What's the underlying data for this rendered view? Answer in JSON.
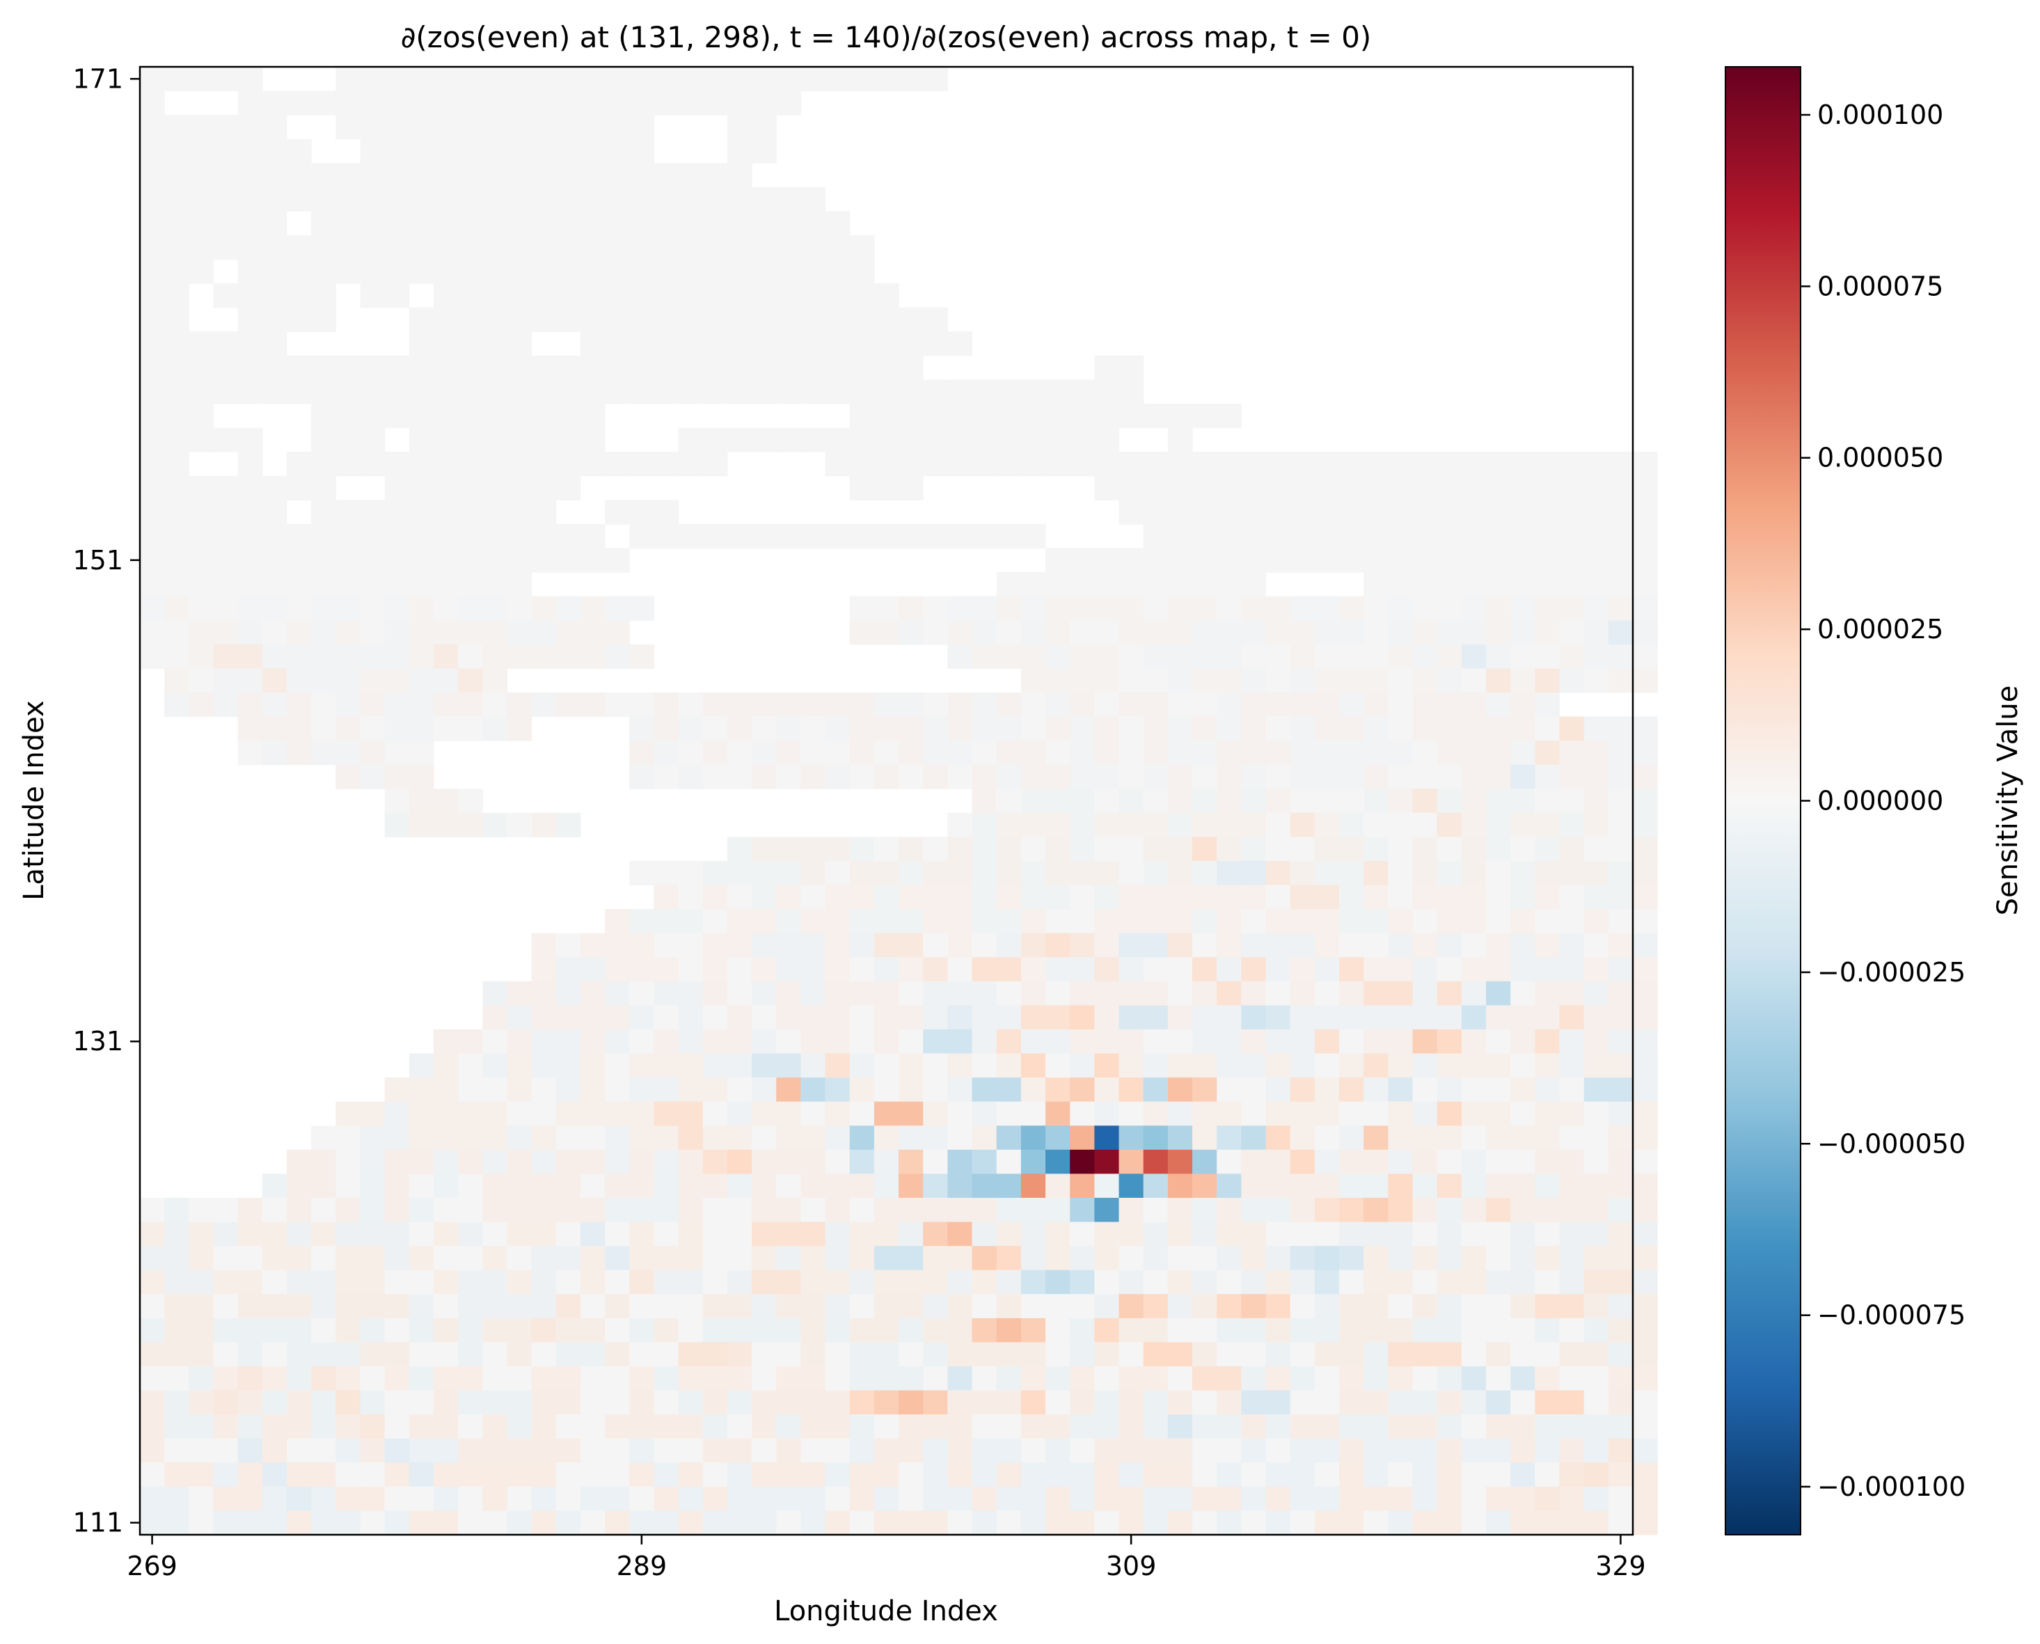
{
  "chart_data": {
    "type": "heatmap",
    "title": "∂(zos(even) at (131, 298), t = 140)/∂(zos(even) across map, t = 0)",
    "xlabel": "Longitude Index",
    "ylabel": "Latitude Index",
    "x_range": [
      269,
      329
    ],
    "y_range": [
      111,
      171
    ],
    "x_ticks": [
      "269",
      "289",
      "309",
      "329"
    ],
    "y_ticks": [
      "171",
      "151",
      "131",
      "111"
    ],
    "colorbar": {
      "label": "Sensitivity Value",
      "colormap": "RdBu_r",
      "range": [
        -0.000107,
        0.000107
      ],
      "ticks": [
        "0.000100",
        "0.000075",
        "0.000050",
        "0.000025",
        "0.000000",
        "−0.000025",
        "−0.000050",
        "−0.000075",
        "−0.000100"
      ]
    },
    "colors": {
      "land": "#ffffff",
      "ocean_zero": "#f5f5f5",
      "neg_max": "#053061",
      "pos_max": "#67001f"
    },
    "grid": false,
    "ocean_rows": [
      "[[0,4],[8,32]]",
      "[[0,0],[4,26]]",
      "[[0,5],[8,20],[24,25]]",
      "[[0,6],[9,20],[24,25]]",
      "[[0,24]]",
      "[[0,27]]",
      "[[0,5],[7,28]]",
      "[[0,29]]",
      "[[0,2],[4,29]]",
      "[[0,1],[3,7],[9,10],[12,30]]",
      "[[0,1],[4,7],[11,32]]",
      "[[0,5],[11,15],[18,33]]",
      "[[0,31],[39,40]]",
      "[[0,40]]",
      "[[0,2],[7,18],[29,44]]",
      "[[0,4],[7,9],[11,18],[22,39],[42,42]]",
      "[[0,1],[4,4],[6,23],[28,61]]",
      "[[0,7],[10,17],[29,31],[39,61]]",
      "[[0,5],[7,16],[19,21],[40,61]]",
      "[[0,18],[20,36],[41,61]]",
      "[[0,19],[37,61]]",
      "[[0,15],[35,45],[50,61]]",
      "[[0,20],[29,61]]",
      "[[0,19],[29,61]]",
      "[[0,20],[33,61]]",
      "[[1,14],[36,61]]",
      "[[1,57]]",
      "[[4,15],[20,61]]",
      "[[4,11],[20,61]]",
      "[[8,11],[20,61]]",
      "[[10,13],[34,61]]",
      "[[10,17],[33,61]]",
      "[[24,61]]",
      "[[20,61]]",
      "[[21,61]]",
      "[[19,61]]",
      "[[16,61]]",
      "[[16,61]]",
      "[[14,61]]",
      "[[14,61]]",
      "[[12,61]]",
      "[[11,61]]",
      "[[10,61]]",
      "[[8,61]]",
      "[[7,61]]",
      "[[6,61]]",
      "[[5,61]]",
      "[[0,61]]",
      "[[0,61]]",
      "[[0,61]]",
      "[[0,61]]",
      "[[0,61]]",
      "[[0,61]]",
      "[[0,61]]",
      "[[0,61]]",
      "[[0,61]]",
      "[[0,61]]",
      "[[0,61]]",
      "[[0,61]]",
      "[[0,61]]",
      "[[0,61]]"
    ],
    "hotspots": [
      [
        38,
        45,
        1.0
      ],
      [
        39,
        45,
        0.9
      ],
      [
        37,
        44,
        -0.35
      ],
      [
        39,
        44,
        -0.8
      ],
      [
        38,
        46,
        0.35
      ],
      [
        40,
        46,
        -0.6
      ],
      [
        38,
        47,
        -0.3
      ],
      [
        39,
        47,
        -0.55
      ],
      [
        36,
        46,
        0.45
      ],
      [
        38,
        44,
        0.35
      ],
      [
        40,
        45,
        0.3
      ],
      [
        41,
        45,
        0.65
      ],
      [
        42,
        45,
        0.55
      ],
      [
        36,
        45,
        -0.4
      ],
      [
        37,
        45,
        -0.6
      ],
      [
        35,
        46,
        -0.35
      ],
      [
        37,
        43,
        0.3
      ],
      [
        36,
        44,
        -0.45
      ],
      [
        35,
        44,
        -0.3
      ],
      [
        40,
        44,
        -0.35
      ],
      [
        41,
        44,
        -0.4
      ],
      [
        42,
        44,
        -0.3
      ],
      [
        43,
        45,
        -0.35
      ],
      [
        44,
        46,
        -0.25
      ],
      [
        33,
        45,
        -0.3
      ],
      [
        34,
        45,
        -0.25
      ],
      [
        34,
        46,
        -0.35
      ],
      [
        33,
        46,
        -0.3
      ],
      [
        41,
        46,
        -0.25
      ],
      [
        42,
        46,
        0.35
      ],
      [
        43,
        46,
        0.3
      ],
      [
        31,
        43,
        0.3
      ],
      [
        30,
        43,
        0.3
      ],
      [
        31,
        45,
        0.25
      ],
      [
        31,
        46,
        0.3
      ],
      [
        32,
        46,
        -0.2
      ],
      [
        40,
        42,
        0.2
      ],
      [
        41,
        42,
        -0.25
      ],
      [
        42,
        42,
        0.3
      ],
      [
        43,
        42,
        0.25
      ],
      [
        44,
        44,
        -0.2
      ],
      [
        45,
        44,
        -0.25
      ],
      [
        29,
        45,
        -0.2
      ],
      [
        29,
        44,
        -0.3
      ],
      [
        28,
        42,
        -0.2
      ],
      [
        27,
        42,
        -0.25
      ],
      [
        26,
        42,
        0.3
      ],
      [
        38,
        42,
        0.25
      ],
      [
        37,
        42,
        0.2
      ],
      [
        36,
        41,
        0.2
      ],
      [
        35,
        42,
        -0.25
      ],
      [
        34,
        42,
        -0.25
      ],
      [
        32,
        40,
        -0.2
      ],
      [
        33,
        40,
        -0.2
      ],
      [
        39,
        41,
        0.2
      ],
      [
        46,
        44,
        0.2
      ],
      [
        47,
        45,
        0.2
      ],
      [
        50,
        44,
        0.25
      ],
      [
        51,
        46,
        0.2
      ],
      [
        53,
        43,
        0.2
      ],
      [
        32,
        48,
        0.25
      ],
      [
        33,
        48,
        0.3
      ],
      [
        34,
        49,
        0.25
      ],
      [
        35,
        49,
        0.2
      ],
      [
        30,
        49,
        -0.2
      ],
      [
        31,
        49,
        -0.2
      ],
      [
        36,
        50,
        -0.2
      ],
      [
        37,
        50,
        -0.25
      ],
      [
        38,
        50,
        -0.2
      ],
      [
        40,
        51,
        0.25
      ],
      [
        41,
        51,
        0.2
      ],
      [
        34,
        52,
        0.25
      ],
      [
        35,
        52,
        0.3
      ],
      [
        36,
        52,
        0.25
      ],
      [
        39,
        52,
        0.2
      ],
      [
        44,
        51,
        0.2
      ],
      [
        45,
        51,
        0.25
      ],
      [
        46,
        51,
        0.2
      ],
      [
        41,
        53,
        0.2
      ],
      [
        42,
        53,
        0.2
      ],
      [
        30,
        55,
        0.25
      ],
      [
        31,
        55,
        0.3
      ],
      [
        32,
        55,
        0.25
      ],
      [
        29,
        55,
        0.2
      ],
      [
        33,
        54,
        -0.15
      ],
      [
        36,
        55,
        0.2
      ],
      [
        42,
        56,
        -0.15
      ],
      [
        57,
        55,
        0.2
      ],
      [
        58,
        55,
        0.2
      ],
      [
        27,
        48,
        0.15
      ],
      [
        26,
        48,
        0.15
      ],
      [
        25,
        48,
        0.15
      ],
      [
        24,
        45,
        0.2
      ],
      [
        23,
        45,
        0.15
      ],
      [
        22,
        44,
        0.15
      ],
      [
        22,
        43,
        0.15
      ],
      [
        21,
        43,
        0.15
      ],
      [
        55,
        38,
        -0.25
      ],
      [
        54,
        39,
        -0.2
      ],
      [
        52,
        40,
        0.25
      ],
      [
        53,
        40,
        0.2
      ],
      [
        57,
        40,
        0.15
      ],
      [
        58,
        39,
        0.15
      ],
      [
        59,
        42,
        -0.2
      ],
      [
        60,
        42,
        -0.2
      ],
      [
        45,
        39,
        -0.2
      ],
      [
        46,
        39,
        -0.15
      ],
      [
        48,
        40,
        0.15
      ],
      [
        50,
        41,
        0.15
      ],
      [
        49,
        42,
        0.15
      ],
      [
        51,
        42,
        -0.15
      ],
      [
        47,
        42,
        0.15
      ],
      [
        49,
        47,
        0.2
      ],
      [
        50,
        47,
        0.25
      ],
      [
        51,
        47,
        0.2
      ],
      [
        48,
        47,
        0.15
      ],
      [
        53,
        46,
        0.15
      ],
      [
        55,
        47,
        0.15
      ],
      [
        43,
        37,
        0.15
      ],
      [
        44,
        38,
        0.15
      ],
      [
        45,
        37,
        0.15
      ],
      [
        35,
        40,
        0.15
      ],
      [
        33,
        39,
        -0.1
      ],
      [
        40,
        39,
        -0.15
      ],
      [
        41,
        39,
        -0.15
      ],
      [
        36,
        39,
        0.15
      ],
      [
        37,
        39,
        0.15
      ],
      [
        38,
        39,
        0.2
      ],
      [
        28,
        41,
        0.15
      ],
      [
        26,
        41,
        -0.15
      ],
      [
        25,
        41,
        -0.15
      ],
      [
        47,
        49,
        -0.15
      ],
      [
        48,
        49,
        -0.2
      ],
      [
        49,
        49,
        -0.15
      ],
      [
        48,
        50,
        -0.15
      ],
      [
        43,
        54,
        0.15
      ],
      [
        44,
        54,
        0.15
      ],
      [
        45,
        55,
        -0.15
      ],
      [
        46,
        55,
        -0.15
      ],
      [
        51,
        53,
        0.15
      ],
      [
        52,
        53,
        0.15
      ],
      [
        53,
        53,
        0.15
      ],
      [
        54,
        54,
        -0.15
      ],
      [
        55,
        55,
        -0.15
      ],
      [
        56,
        54,
        -0.15
      ],
      [
        57,
        51,
        0.15
      ],
      [
        58,
        51,
        0.15
      ],
      [
        59,
        50,
        0.1
      ],
      [
        60,
        50,
        0.1
      ],
      [
        49,
        37,
        0.15
      ],
      [
        50,
        38,
        0.15
      ],
      [
        51,
        38,
        0.15
      ],
      [
        53,
        38,
        0.15
      ],
      [
        30,
        36,
        0.1
      ],
      [
        31,
        36,
        0.1
      ],
      [
        32,
        37,
        0.1
      ],
      [
        34,
        37,
        0.15
      ],
      [
        35,
        37,
        0.15
      ],
      [
        36,
        36,
        0.1
      ],
      [
        37,
        36,
        0.15
      ],
      [
        38,
        36,
        0.1
      ],
      [
        39,
        37,
        0.1
      ],
      [
        40,
        36,
        -0.1
      ],
      [
        41,
        36,
        -0.1
      ],
      [
        42,
        36,
        0.1
      ],
      [
        44,
        33,
        -0.1
      ],
      [
        45,
        33,
        -0.1
      ],
      [
        47,
        34,
        0.1
      ],
      [
        48,
        34,
        0.1
      ],
      [
        43,
        32,
        0.15
      ],
      [
        22,
        53,
        0.12
      ],
      [
        23,
        53,
        0.12
      ],
      [
        24,
        53,
        0.1
      ],
      [
        25,
        50,
        0.12
      ],
      [
        26,
        50,
        0.12
      ],
      [
        20,
        50,
        0.1
      ],
      [
        19,
        49,
        -0.1
      ],
      [
        18,
        48,
        -0.1
      ],
      [
        17,
        51,
        0.1
      ],
      [
        16,
        52,
        0.1
      ],
      [
        4,
        57,
        -0.1
      ],
      [
        5,
        58,
        -0.1
      ],
      [
        6,
        59,
        -0.1
      ],
      [
        3,
        55,
        0.1
      ],
      [
        4,
        54,
        0.1
      ],
      [
        7,
        54,
        0.1
      ],
      [
        8,
        55,
        0.12
      ],
      [
        9,
        56,
        0.1
      ],
      [
        10,
        57,
        -0.1
      ],
      [
        11,
        58,
        -0.1
      ],
      [
        60,
        57,
        0.1
      ],
      [
        59,
        58,
        0.12
      ],
      [
        58,
        58,
        0.1
      ],
      [
        57,
        59,
        0.1
      ],
      [
        56,
        58,
        -0.1
      ],
      [
        54,
        24,
        -0.1
      ],
      [
        55,
        25,
        0.1
      ],
      [
        57,
        25,
        0.1
      ],
      [
        58,
        27,
        0.12
      ],
      [
        57,
        28,
        0.1
      ],
      [
        56,
        29,
        -0.1
      ],
      [
        59,
        26,
        0.1
      ],
      [
        60,
        23,
        -0.1
      ],
      [
        52,
        30,
        0.1
      ],
      [
        53,
        31,
        0.1
      ],
      [
        50,
        33,
        0.1
      ],
      [
        46,
        33,
        0.1
      ],
      [
        47,
        31,
        0.1
      ],
      [
        10,
        35,
        0.1
      ],
      [
        11,
        34,
        0.1
      ],
      [
        12,
        24,
        0.08
      ],
      [
        13,
        25,
        0.08
      ],
      [
        3,
        24,
        0.08
      ],
      [
        4,
        24,
        0.08
      ],
      [
        5,
        25,
        0.08
      ],
      [
        6,
        30,
        0.08
      ],
      [
        7,
        31,
        0.08
      ],
      [
        8,
        31,
        0.08
      ]
    ]
  }
}
